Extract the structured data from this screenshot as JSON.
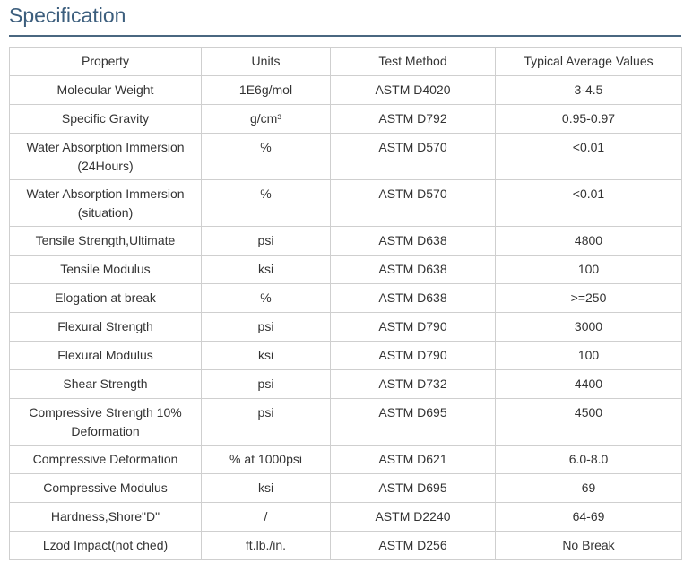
{
  "page": {
    "title": "Specification"
  },
  "table": {
    "headers": [
      "Property",
      "Units",
      "Test Method",
      "Typical Average Values"
    ],
    "rows": [
      {
        "property": "Molecular Weight",
        "units": "1E6g/mol",
        "method": "ASTM D4020",
        "value": "3-4.5"
      },
      {
        "property": "Specific Gravity",
        "units": "g/cm³",
        "method": "ASTM D792",
        "value": "0.95-0.97"
      },
      {
        "property": "Water Absorption Immersion (24Hours)",
        "units": "%",
        "method": "ASTM D570",
        "value": "<0.01"
      },
      {
        "property": "Water Absorption Immersion (situation)",
        "units": "%",
        "method": "ASTM D570",
        "value": "<0.01"
      },
      {
        "property": "Tensile Strength,Ultimate",
        "units": "psi",
        "method": "ASTM D638",
        "value": "4800"
      },
      {
        "property": "Tensile Modulus",
        "units": "ksi",
        "method": "ASTM D638",
        "value": "100"
      },
      {
        "property": "Elogation at break",
        "units": "%",
        "method": "ASTM D638",
        "value": ">=250"
      },
      {
        "property": "Flexural Strength",
        "units": "psi",
        "method": "ASTM D790",
        "value": "3000"
      },
      {
        "property": "Flexural Modulus",
        "units": "ksi",
        "method": "ASTM D790",
        "value": "100"
      },
      {
        "property": "Shear Strength",
        "units": "psi",
        "method": "ASTM D732",
        "value": "4400"
      },
      {
        "property": "Compressive Strength 10% Deformation",
        "units": "psi",
        "method": "ASTM D695",
        "value": "4500"
      },
      {
        "property": "Compressive Deformation",
        "units": "% at 1000psi",
        "method": "ASTM D621",
        "value": "6.0-8.0"
      },
      {
        "property": "Compressive Modulus",
        "units": "ksi",
        "method": "ASTM D695",
        "value": "69"
      },
      {
        "property": "Hardness,Shore\"D\"",
        "units": "/",
        "method": "ASTM D2240",
        "value": "64-69"
      },
      {
        "property": "Lzod Impact(not ched)",
        "units": "ft.lb./in.",
        "method": "ASTM D256",
        "value": "No Break"
      }
    ]
  }
}
